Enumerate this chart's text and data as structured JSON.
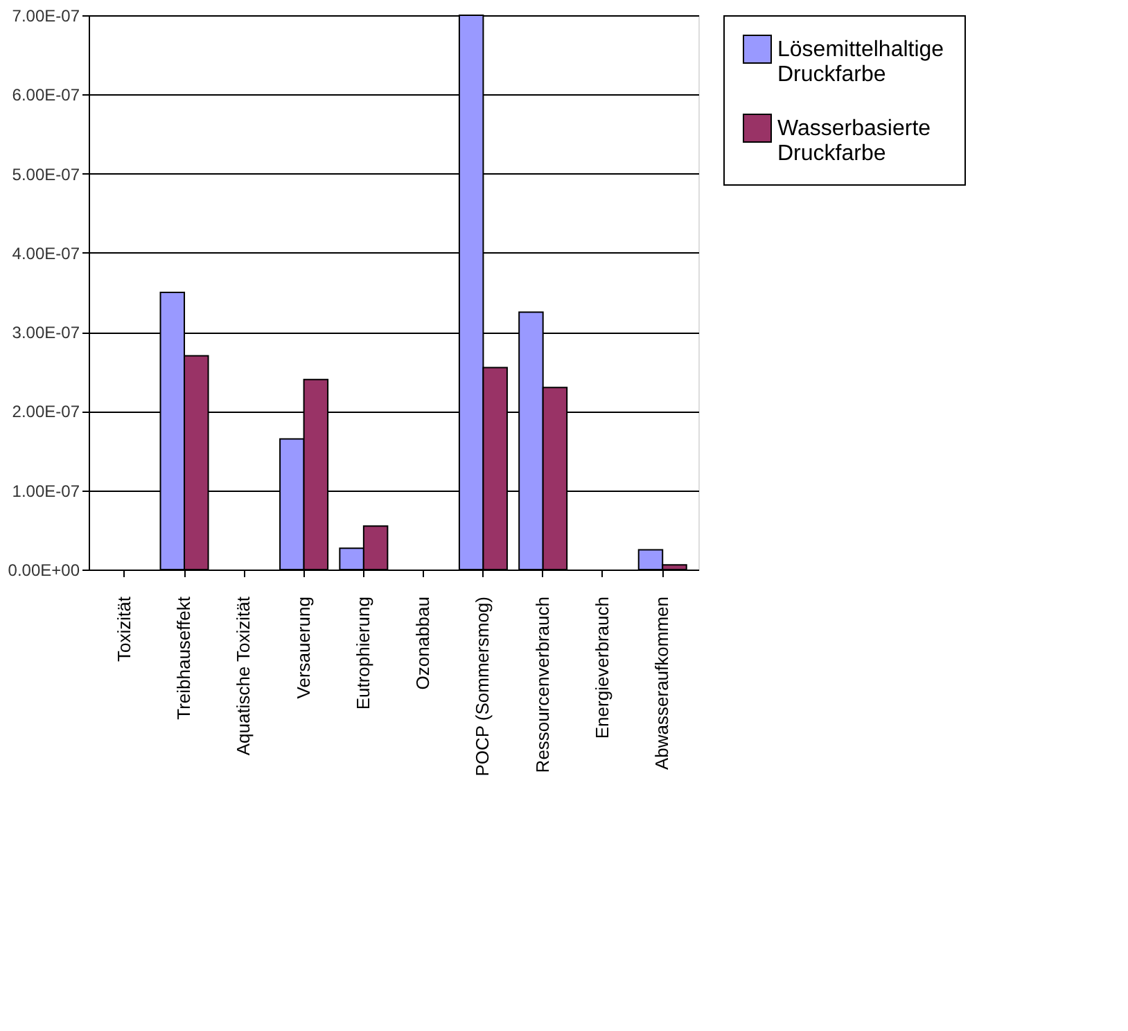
{
  "chart_data": {
    "type": "bar",
    "categories": [
      "Toxizität",
      "Treibhauseffekt",
      "Aquatische Toxizität",
      "Versauerung",
      "Eutrophierung",
      "Ozonabbau",
      "POCP (Sommersmog)",
      "Ressourcenverbrauch",
      "Energieverbrauch",
      "Abwasseraufkommen"
    ],
    "series": [
      {
        "name": "Lösemittelhaltige Druckfarbe",
        "color": "#9999ff",
        "values": [
          0,
          3.5e-07,
          0,
          1.65e-07,
          2.7e-08,
          0,
          7e-07,
          3.25e-07,
          0,
          2.5e-08
        ]
      },
      {
        "name": "Wasserbasierte Druckfarbe",
        "color": "#993366",
        "values": [
          0,
          2.7e-07,
          0,
          2.4e-07,
          5.5e-08,
          0,
          2.55e-07,
          2.3e-07,
          0,
          6e-09
        ]
      }
    ],
    "ylim": [
      0,
      7e-07
    ],
    "yticks": [
      {
        "value": 0,
        "label": "0.00E+00"
      },
      {
        "value": 1e-07,
        "label": "1.00E-07"
      },
      {
        "value": 2e-07,
        "label": "2.00E-07"
      },
      {
        "value": 3e-07,
        "label": "3.00E-07"
      },
      {
        "value": 4e-07,
        "label": "4.00E-07"
      },
      {
        "value": 5e-07,
        "label": "5.00E-07"
      },
      {
        "value": 6e-07,
        "label": "6.00E-07"
      },
      {
        "value": 7e-07,
        "label": "7.00E-07"
      }
    ],
    "grid": "y",
    "legend": "right"
  }
}
